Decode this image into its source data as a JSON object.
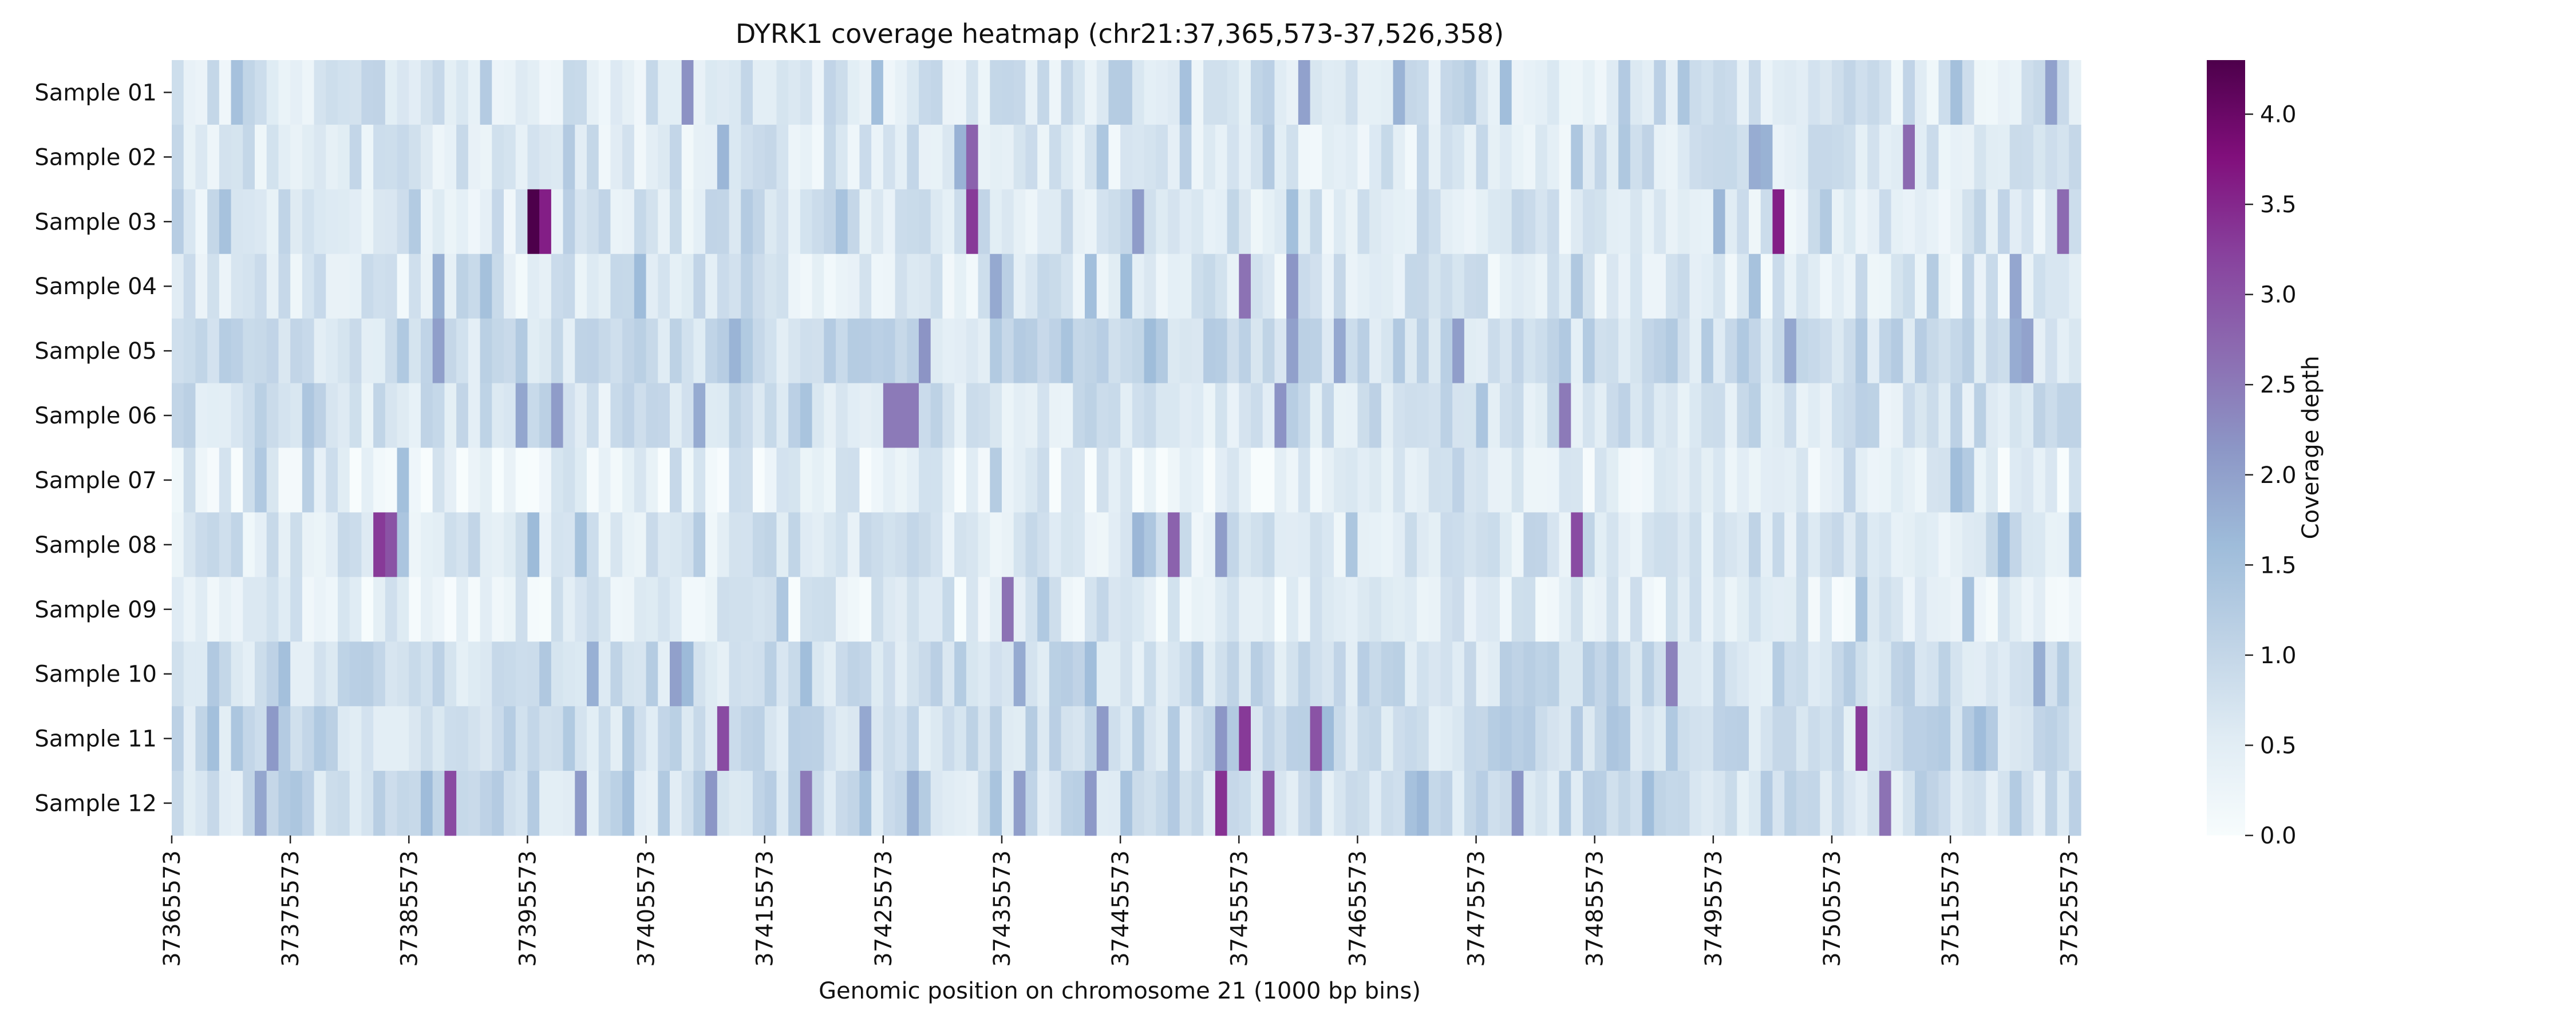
{
  "chart_data": {
    "type": "heatmap",
    "title": "DYRK1 coverage heatmap (chr21:37,365,573-37,526,358)",
    "xlabel": "Genomic position on chromosome 21 (1000 bp bins)",
    "ylabel": "",
    "rows": [
      "Sample 01",
      "Sample 02",
      "Sample 03",
      "Sample 04",
      "Sample 05",
      "Sample 06",
      "Sample 07",
      "Sample 08",
      "Sample 09",
      "Sample 10",
      "Sample 11",
      "Sample 12"
    ],
    "x_ticks": [
      "37365573",
      "37375573",
      "37385573",
      "37395573",
      "37405573",
      "37415573",
      "37425573",
      "37435573",
      "37445573",
      "37455573",
      "37465573",
      "37475573",
      "37485573",
      "37495573",
      "37505573",
      "37515573",
      "37525573"
    ],
    "x_start": 37365573,
    "bin_size": 1000,
    "n_bins": 161,
    "value_range": [
      0.0,
      4.3
    ],
    "colorbar": {
      "label": "Coverage depth",
      "ticks": [
        "0.0",
        "0.5",
        "1.0",
        "1.5",
        "2.0",
        "2.5",
        "3.0",
        "3.5",
        "4.0"
      ],
      "colormap": "BuPu",
      "colors": [
        "#f7fcfd",
        "#e0ecf4",
        "#bfd3e6",
        "#9ebcda",
        "#8c96c6",
        "#8c6bb1",
        "#88419d",
        "#810f7c",
        "#4d004b"
      ]
    },
    "values_note": "",
    "values": [],
    "highlights": [
      {
        "row": 0,
        "bin": 43,
        "value": 2.2
      },
      {
        "row": 0,
        "bin": 95,
        "value": 2.0
      },
      {
        "row": 0,
        "bin": 158,
        "value": 2.0
      },
      {
        "row": 1,
        "bin": 67,
        "value": 2.8
      },
      {
        "row": 1,
        "bin": 146,
        "value": 2.7
      },
      {
        "row": 2,
        "bin": 30,
        "value": 4.3
      },
      {
        "row": 2,
        "bin": 31,
        "value": 3.6
      },
      {
        "row": 2,
        "bin": 67,
        "value": 3.3
      },
      {
        "row": 2,
        "bin": 135,
        "value": 3.6
      },
      {
        "row": 2,
        "bin": 159,
        "value": 2.7
      },
      {
        "row": 3,
        "bin": 90,
        "value": 2.6
      },
      {
        "row": 5,
        "bin": 60,
        "value": 2.5
      },
      {
        "row": 5,
        "bin": 61,
        "value": 2.5
      },
      {
        "row": 5,
        "bin": 62,
        "value": 2.5
      },
      {
        "row": 5,
        "bin": 117,
        "value": 2.5
      },
      {
        "row": 7,
        "bin": 17,
        "value": 3.3
      },
      {
        "row": 7,
        "bin": 18,
        "value": 3.0
      },
      {
        "row": 7,
        "bin": 84,
        "value": 2.8
      },
      {
        "row": 7,
        "bin": 118,
        "value": 3.1
      },
      {
        "row": 8,
        "bin": 70,
        "value": 2.6
      },
      {
        "row": 9,
        "bin": 126,
        "value": 2.4
      },
      {
        "row": 10,
        "bin": 46,
        "value": 3.1
      },
      {
        "row": 10,
        "bin": 90,
        "value": 3.3
      },
      {
        "row": 10,
        "bin": 96,
        "value": 3.0
      },
      {
        "row": 10,
        "bin": 142,
        "value": 3.3
      },
      {
        "row": 11,
        "bin": 23,
        "value": 3.1
      },
      {
        "row": 11,
        "bin": 53,
        "value": 2.5
      },
      {
        "row": 11,
        "bin": 88,
        "value": 3.4
      },
      {
        "row": 11,
        "bin": 92,
        "value": 3.0
      },
      {
        "row": 11,
        "bin": 144,
        "value": 2.6
      }
    ]
  }
}
